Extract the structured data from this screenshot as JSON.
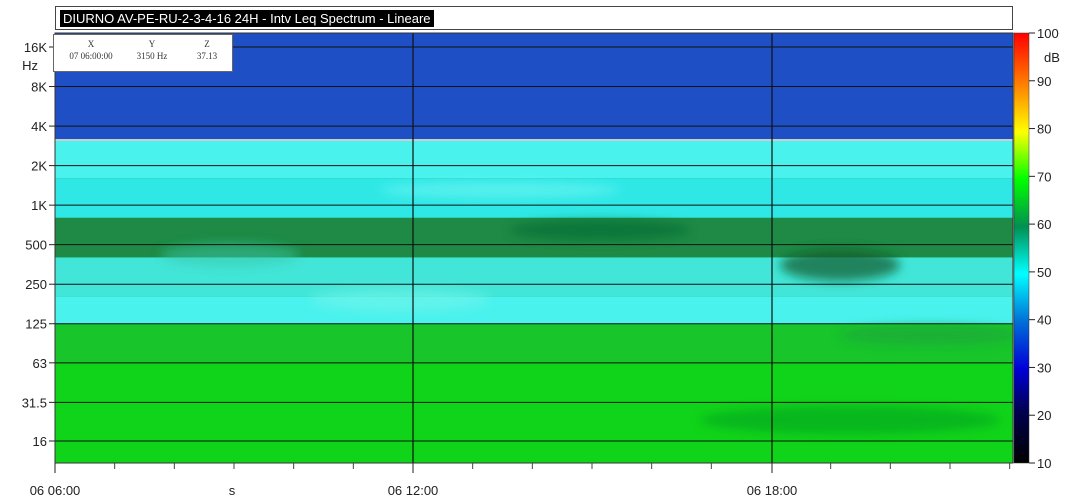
{
  "title": "DIURNO AV-PE-RU-2-3-4-16 24H - Intv Leq Spectrum - Lineare",
  "readout": {
    "x_label": "X",
    "x_value": "07 06:00:00",
    "y_label": "Y",
    "y_value": "3150 Hz",
    "z_label": "Z",
    "z_value": "37.13"
  },
  "colorbar": {
    "unit": "dB",
    "min": 10,
    "max": 100,
    "ticks": [
      100,
      90,
      80,
      70,
      60,
      50,
      40,
      30,
      20,
      10
    ]
  },
  "chart_data": {
    "type": "heatmap",
    "title": "DIURNO AV-PE-RU-2-3-4-16 24H - Intv Leq Spectrum - Lineare",
    "xlabel": "s",
    "ylabel": "Hz",
    "y_scale": "log",
    "x_ticks": [
      "06 06:00",
      "06 12:00",
      "06 18:00"
    ],
    "y_ticks": [
      "16K",
      "8K",
      "4K",
      "2K",
      "1K",
      "500",
      "250",
      "125",
      "63",
      "31.5",
      "16"
    ],
    "y_tick_values_hz": [
      16000,
      8000,
      4000,
      2000,
      1000,
      500,
      250,
      125,
      63,
      31.5,
      16
    ],
    "z_unit": "dB",
    "z_range": [
      10,
      100
    ],
    "bands": [
      {
        "from_hz": 3150,
        "to_hz": 20000,
        "level_db": 27
      },
      {
        "from_hz": 1600,
        "to_hz": 3150,
        "level_db": 44
      },
      {
        "from_hz": 800,
        "to_hz": 1600,
        "level_db": 42
      },
      {
        "from_hz": 400,
        "to_hz": 800,
        "level_db": 53
      },
      {
        "from_hz": 200,
        "to_hz": 400,
        "level_db": 46
      },
      {
        "from_hz": 125,
        "to_hz": 200,
        "level_db": 43
      },
      {
        "from_hz": 63,
        "to_hz": 125,
        "level_db": 60
      },
      {
        "from_hz": 12,
        "to_hz": 63,
        "level_db": 62
      }
    ],
    "grid": true
  }
}
